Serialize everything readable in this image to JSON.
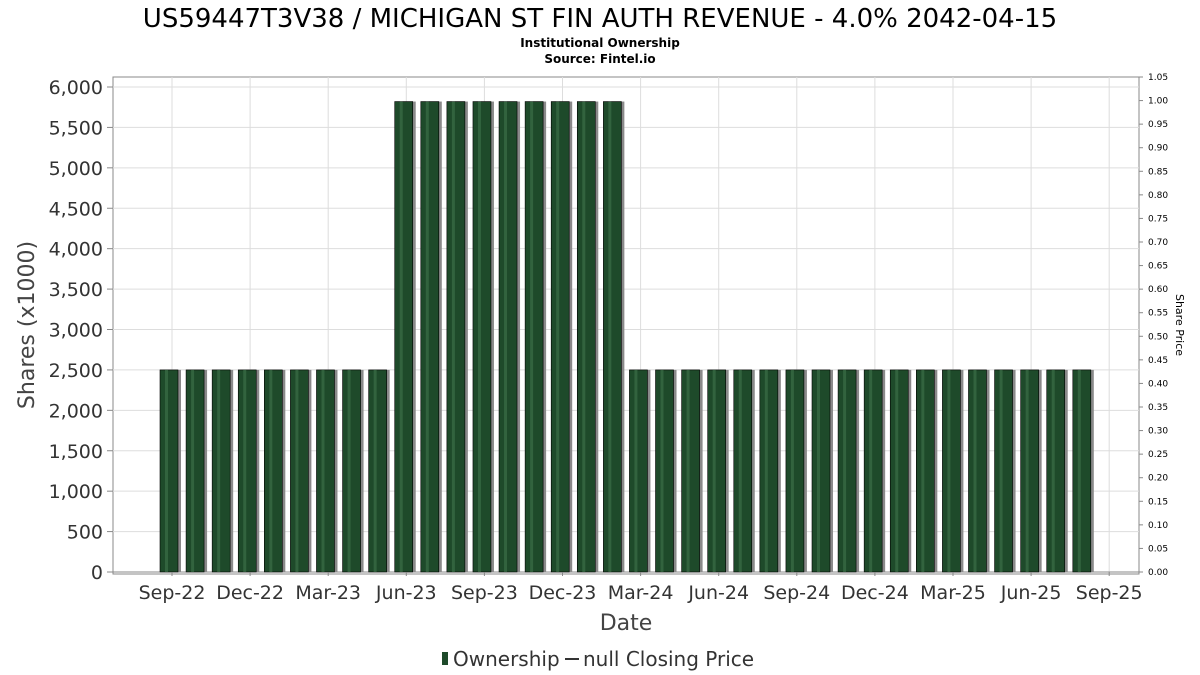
{
  "chart_data": {
    "type": "bar",
    "title": "US59447T3V38 / MICHIGAN ST FIN AUTH REVENUE - 4.0% 2042-04-15",
    "subtitle": "Institutional Ownership",
    "source": "Source: Fintel.io",
    "xlabel": "Date",
    "ylabel": "Shares (x1000)",
    "y2label": "Share Price",
    "ylim": [
      0,
      6000
    ],
    "y2lim": [
      0,
      1.05
    ],
    "grid": true,
    "x_tick_labels": [
      "Sep-22",
      "Dec-22",
      "Mar-23",
      "Jun-23",
      "Sep-23",
      "Dec-23",
      "Mar-24",
      "Jun-24",
      "Sep-24",
      "Dec-24",
      "Mar-25",
      "Jun-25",
      "Sep-25"
    ],
    "y_tick_labels": [
      "0",
      "500",
      "1,000",
      "1,500",
      "2,000",
      "2,500",
      "3,000",
      "3,500",
      "4,000",
      "4,500",
      "5,000",
      "5,500",
      "6,000"
    ],
    "y2_tick_labels": [
      "0.00",
      "0.05",
      "0.10",
      "0.15",
      "0.20",
      "0.25",
      "0.30",
      "0.35",
      "0.40",
      "0.45",
      "0.50",
      "0.55",
      "0.60",
      "0.65",
      "0.70",
      "0.75",
      "0.80",
      "0.85",
      "0.90",
      "0.95",
      "1.00",
      "1.05"
    ],
    "series": [
      {
        "name": "Ownership",
        "color": "#1e4a2a",
        "values": [
          2500,
          2500,
          2500,
          2500,
          2500,
          2500,
          2500,
          2500,
          2500,
          5820,
          5820,
          5820,
          5820,
          5820,
          5820,
          5820,
          5820,
          5820,
          2500,
          2500,
          2500,
          2500,
          2500,
          2500,
          2500,
          2500,
          2500,
          2500,
          2500,
          2500,
          2500,
          2500,
          2500,
          2500,
          2500,
          2500
        ]
      },
      {
        "name": "null Closing Price",
        "color": "#333333",
        "values": []
      }
    ],
    "legend_position": "bottom"
  }
}
